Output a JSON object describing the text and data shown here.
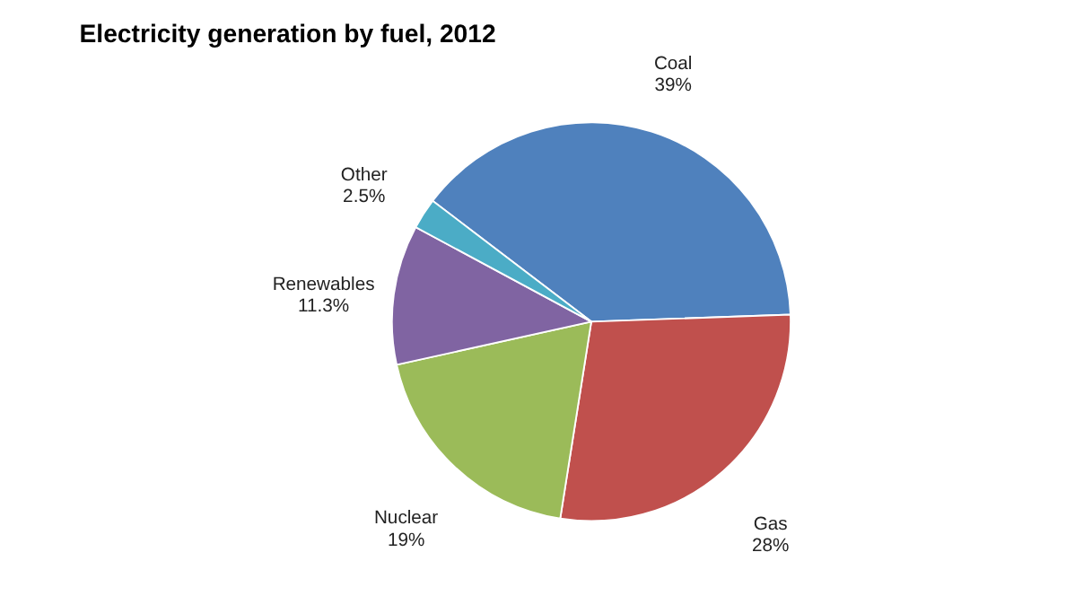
{
  "chart_data": {
    "type": "pie",
    "title": "Electricity generation by fuel, 2012",
    "categories": [
      "Coal",
      "Gas",
      "Nuclear",
      "Renewables",
      "Other"
    ],
    "values": [
      39,
      28,
      19,
      11.3,
      2.5
    ],
    "value_labels": [
      "39%",
      "28%",
      "19%",
      "11.3%",
      "2.5%"
    ],
    "colors": [
      "#4f81bd",
      "#c0504d",
      "#9bbb59",
      "#8064a2",
      "#4bacc6"
    ],
    "legend": false
  }
}
